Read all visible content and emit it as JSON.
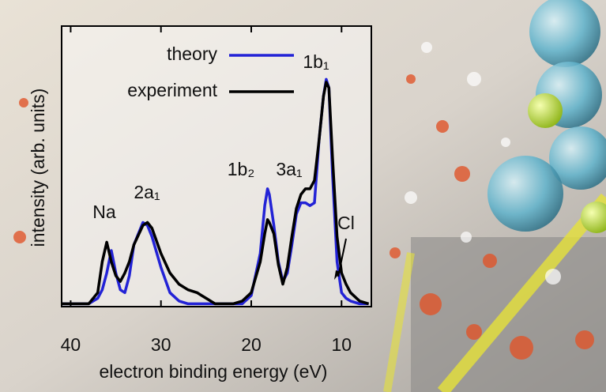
{
  "chart_data": {
    "type": "line",
    "xlabel": "electron binding energy  (eV)",
    "ylabel": "intensity  (arb. units)",
    "x": [
      41,
      38,
      37,
      36.5,
      36,
      35.5,
      35,
      34.5,
      34,
      33.5,
      33,
      32,
      31.5,
      31,
      30,
      29,
      28,
      27,
      26,
      25,
      24,
      23,
      22,
      21,
      20,
      19,
      18.5,
      18.2,
      18,
      17.5,
      17,
      16.5,
      16,
      15.5,
      15,
      14.5,
      14,
      13.5,
      13,
      12.5,
      12,
      11.7,
      11.4,
      11,
      10.5,
      10,
      9.5,
      9,
      8,
      7
    ],
    "series": [
      {
        "name": "theory",
        "color": "#2323d6",
        "values": [
          0.01,
          0.01,
          0.03,
          0.06,
          0.12,
          0.2,
          0.12,
          0.06,
          0.05,
          0.11,
          0.22,
          0.3,
          0.29,
          0.25,
          0.14,
          0.05,
          0.02,
          0.01,
          0.01,
          0.01,
          0.01,
          0.01,
          0.01,
          0.01,
          0.04,
          0.19,
          0.36,
          0.42,
          0.4,
          0.29,
          0.16,
          0.09,
          0.12,
          0.22,
          0.33,
          0.37,
          0.37,
          0.36,
          0.37,
          0.59,
          0.75,
          0.81,
          0.78,
          0.47,
          0.16,
          0.05,
          0.03,
          0.02,
          0.01,
          0.01
        ]
      },
      {
        "name": "experiment",
        "color": "#000000",
        "values": [
          0.01,
          0.01,
          0.05,
          0.16,
          0.23,
          0.16,
          0.11,
          0.09,
          0.12,
          0.16,
          0.22,
          0.29,
          0.3,
          0.28,
          0.19,
          0.12,
          0.08,
          0.06,
          0.05,
          0.03,
          0.01,
          0.01,
          0.01,
          0.02,
          0.05,
          0.16,
          0.26,
          0.31,
          0.3,
          0.26,
          0.15,
          0.08,
          0.14,
          0.25,
          0.35,
          0.4,
          0.42,
          0.42,
          0.45,
          0.59,
          0.75,
          0.8,
          0.78,
          0.53,
          0.25,
          0.12,
          0.08,
          0.05,
          0.02,
          0.01
        ]
      }
    ],
    "annotations": [
      "1b₁",
      "1b₂",
      "3a₁",
      "2a₁",
      "Na",
      "Cl"
    ],
    "xlim": [
      41,
      6.7
    ],
    "xticks": [
      40,
      30,
      20,
      10
    ],
    "ylim": [
      0,
      1
    ]
  }
}
